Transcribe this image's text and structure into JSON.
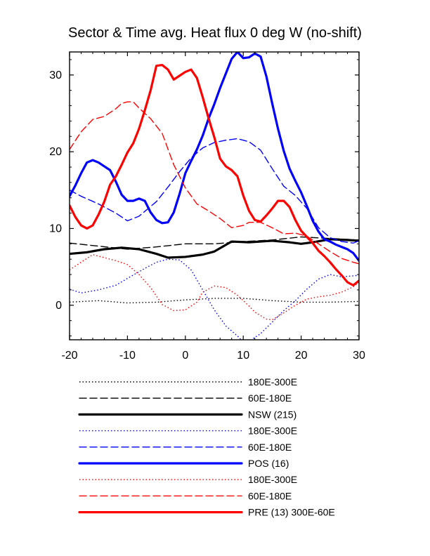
{
  "chart_data": {
    "type": "line",
    "title": "Sector & Time avg. Heat flux 0 deg W (no-shift)",
    "xlim": [
      -20,
      30
    ],
    "ylim": [
      -4.5,
      33
    ],
    "xticks": [
      "-20",
      "-10",
      "0",
      "10",
      "20",
      "30"
    ],
    "yticks": [
      "0",
      "10",
      "20",
      "30"
    ],
    "grid": false,
    "legend_position": "bottom",
    "series": [
      {
        "name": "180E-300E",
        "color": "#000000",
        "style": "dotted",
        "width": "thin",
        "points": [
          [
            -20,
            0.4
          ],
          [
            -15,
            0.6
          ],
          [
            -10,
            0.3
          ],
          [
            -5,
            0.4
          ],
          [
            0,
            0.7
          ],
          [
            5,
            0.9
          ],
          [
            10,
            0.9
          ],
          [
            15,
            0.6
          ],
          [
            20,
            0.4
          ],
          [
            25,
            0.4
          ],
          [
            30,
            0.5
          ]
        ]
      },
      {
        "name": "60E-180E",
        "color": "#000000",
        "style": "dashed",
        "width": "thin",
        "points": [
          [
            -20,
            8.1
          ],
          [
            -15,
            7.7
          ],
          [
            -10,
            7.3
          ],
          [
            -5,
            7.6
          ],
          [
            0,
            8.0
          ],
          [
            5,
            8.0
          ],
          [
            10,
            8.3
          ],
          [
            15,
            8.5
          ],
          [
            20,
            8.9
          ],
          [
            25,
            8.7
          ],
          [
            30,
            8.5
          ]
        ]
      },
      {
        "name": "NSW (215)",
        "color": "#000000",
        "style": "solid",
        "width": "thick",
        "points": [
          [
            -20,
            6.7
          ],
          [
            -17,
            6.9
          ],
          [
            -14,
            7.3
          ],
          [
            -11,
            7.5
          ],
          [
            -8,
            7.3
          ],
          [
            -5,
            6.7
          ],
          [
            -3,
            6.2
          ],
          [
            0,
            6.3
          ],
          [
            3,
            6.6
          ],
          [
            5,
            7.0
          ],
          [
            8,
            8.3
          ],
          [
            11,
            8.2
          ],
          [
            15,
            8.4
          ],
          [
            18,
            8.2
          ],
          [
            20,
            8.0
          ],
          [
            22,
            8.2
          ],
          [
            25,
            8.6
          ],
          [
            28,
            8.5
          ],
          [
            30,
            8.4
          ]
        ]
      },
      {
        "name": "180E-300E",
        "color": "#0000ff",
        "style": "dotted",
        "width": "thin",
        "points": [
          [
            -20,
            2.1
          ],
          [
            -18,
            1.6
          ],
          [
            -15,
            2.0
          ],
          [
            -12,
            2.6
          ],
          [
            -10,
            3.5
          ],
          [
            -7,
            4.8
          ],
          [
            -5,
            5.6
          ],
          [
            -3,
            6.0
          ],
          [
            -1,
            5.9
          ],
          [
            1,
            4.6
          ],
          [
            3,
            2.0
          ],
          [
            5,
            -0.6
          ],
          [
            7,
            -2.7
          ],
          [
            9,
            -4.0
          ],
          [
            10,
            -4.8
          ],
          [
            11,
            -4.7
          ],
          [
            13,
            -3.7
          ],
          [
            15,
            -2.2
          ],
          [
            17,
            -0.7
          ],
          [
            19,
            0.6
          ],
          [
            21,
            2.1
          ],
          [
            23,
            3.4
          ],
          [
            25,
            4.0
          ],
          [
            27,
            3.7
          ],
          [
            30,
            3.9
          ]
        ]
      },
      {
        "name": "60E-180E",
        "color": "#0000ff",
        "style": "dashed",
        "width": "thin",
        "points": [
          [
            -20,
            15.0
          ],
          [
            -18,
            14.2
          ],
          [
            -15,
            13.2
          ],
          [
            -12,
            12.0
          ],
          [
            -10,
            11.0
          ],
          [
            -8,
            11.6
          ],
          [
            -5,
            13.5
          ],
          [
            -3,
            15.4
          ],
          [
            -1,
            17.4
          ],
          [
            1,
            19.2
          ],
          [
            3,
            20.5
          ],
          [
            5,
            21.2
          ],
          [
            7,
            21.5
          ],
          [
            9,
            21.7
          ],
          [
            11,
            21.3
          ],
          [
            13,
            20.2
          ],
          [
            15,
            17.8
          ],
          [
            17,
            15.5
          ],
          [
            19,
            14.3
          ],
          [
            21,
            12.6
          ],
          [
            23,
            10.1
          ],
          [
            25,
            8.8
          ],
          [
            27,
            8.3
          ],
          [
            29,
            8.1
          ],
          [
            30,
            8.4
          ]
        ]
      },
      {
        "name": "POS (16)",
        "color": "#0000ff",
        "style": "solid",
        "width": "thick",
        "points": [
          [
            -20,
            14.2
          ],
          [
            -19,
            15.6
          ],
          [
            -18,
            17.2
          ],
          [
            -17,
            18.6
          ],
          [
            -16,
            18.9
          ],
          [
            -15,
            18.6
          ],
          [
            -14,
            18.1
          ],
          [
            -13,
            17.6
          ],
          [
            -12,
            16.1
          ],
          [
            -11,
            14.4
          ],
          [
            -10,
            13.6
          ],
          [
            -9,
            13.6
          ],
          [
            -8,
            13.9
          ],
          [
            -7,
            13.6
          ],
          [
            -6,
            12.1
          ],
          [
            -5,
            11.1
          ],
          [
            -4,
            10.7
          ],
          [
            -3,
            10.8
          ],
          [
            -2,
            12.1
          ],
          [
            -1,
            14.5
          ],
          [
            0,
            17.2
          ],
          [
            1,
            18.8
          ],
          [
            2,
            20.3
          ],
          [
            3,
            22.1
          ],
          [
            4,
            24.3
          ],
          [
            5,
            26.2
          ],
          [
            6,
            28.3
          ],
          [
            7,
            30.2
          ],
          [
            8,
            32.1
          ],
          [
            9,
            33.0
          ],
          [
            10,
            32.2
          ],
          [
            11,
            32.3
          ],
          [
            12,
            32.8
          ],
          [
            13,
            32.4
          ],
          [
            14,
            29.8
          ],
          [
            15,
            26.3
          ],
          [
            16,
            23.0
          ],
          [
            17,
            20.1
          ],
          [
            18,
            17.8
          ],
          [
            19,
            16.2
          ],
          [
            20,
            14.7
          ],
          [
            21,
            12.9
          ],
          [
            22,
            11.0
          ],
          [
            23,
            9.6
          ],
          [
            24,
            8.6
          ],
          [
            25,
            8.3
          ],
          [
            26,
            7.9
          ],
          [
            27,
            7.6
          ],
          [
            28,
            7.3
          ],
          [
            29,
            6.8
          ],
          [
            30,
            5.8
          ]
        ]
      },
      {
        "name": "180E-300E",
        "color": "#ff0000",
        "style": "dotted",
        "width": "thin",
        "points": [
          [
            -20,
            4.6
          ],
          [
            -18,
            5.6
          ],
          [
            -16,
            6.6
          ],
          [
            -14,
            6.2
          ],
          [
            -12,
            5.8
          ],
          [
            -10,
            5.3
          ],
          [
            -8,
            4.0
          ],
          [
            -6,
            2.3
          ],
          [
            -4,
            0.1
          ],
          [
            -2,
            -0.7
          ],
          [
            0,
            -0.6
          ],
          [
            2,
            0.4
          ],
          [
            3,
            1.7
          ],
          [
            5,
            2.5
          ],
          [
            7,
            2.3
          ],
          [
            9,
            1.3
          ],
          [
            11,
            -0.1
          ],
          [
            12,
            -0.9
          ],
          [
            14,
            -1.8
          ],
          [
            15,
            -1.9
          ],
          [
            17,
            -1.0
          ],
          [
            19,
            0.0
          ],
          [
            21,
            0.8
          ],
          [
            23,
            1.1
          ],
          [
            25,
            1.3
          ],
          [
            27,
            1.7
          ],
          [
            29,
            2.4
          ],
          [
            30,
            3.0
          ]
        ]
      },
      {
        "name": "60E-180E",
        "color": "#ff0000",
        "style": "dashed",
        "width": "thin",
        "points": [
          [
            -20,
            20.3
          ],
          [
            -18,
            22.6
          ],
          [
            -16,
            24.2
          ],
          [
            -14,
            24.6
          ],
          [
            -12,
            25.6
          ],
          [
            -11,
            26.3
          ],
          [
            -10,
            26.5
          ],
          [
            -9,
            26.5
          ],
          [
            -8,
            25.7
          ],
          [
            -6,
            24.3
          ],
          [
            -4,
            22.4
          ],
          [
            -2,
            18.3
          ],
          [
            0,
            15.3
          ],
          [
            2,
            13.2
          ],
          [
            4,
            12.3
          ],
          [
            6,
            11.3
          ],
          [
            8,
            10.1
          ],
          [
            10,
            10.4
          ],
          [
            11,
            10.8
          ],
          [
            13,
            10.8
          ],
          [
            15,
            10.1
          ],
          [
            17,
            9.3
          ],
          [
            19,
            9.4
          ],
          [
            21,
            9.0
          ],
          [
            23,
            8.0
          ],
          [
            25,
            7.0
          ],
          [
            27,
            6.1
          ],
          [
            29,
            5.6
          ],
          [
            30,
            5.4
          ]
        ]
      },
      {
        "name": "PRE (13) 300E-60E",
        "color": "#ff0000",
        "style": "solid",
        "width": "thick",
        "points": [
          [
            -20,
            13.0
          ],
          [
            -19,
            11.5
          ],
          [
            -18,
            10.4
          ],
          [
            -17,
            10.0
          ],
          [
            -16,
            10.4
          ],
          [
            -15,
            11.8
          ],
          [
            -14,
            13.5
          ],
          [
            -13,
            15.7
          ],
          [
            -12,
            16.8
          ],
          [
            -11,
            18.3
          ],
          [
            -10,
            19.9
          ],
          [
            -9,
            21.1
          ],
          [
            -8,
            23.0
          ],
          [
            -7,
            25.4
          ],
          [
            -6,
            28.0
          ],
          [
            -5,
            31.2
          ],
          [
            -4,
            31.3
          ],
          [
            -3,
            30.7
          ],
          [
            -2,
            29.4
          ],
          [
            -1,
            29.9
          ],
          [
            0,
            30.4
          ],
          [
            1,
            30.7
          ],
          [
            2,
            29.6
          ],
          [
            3,
            27.1
          ],
          [
            4,
            24.4
          ],
          [
            5,
            21.9
          ],
          [
            6,
            19.1
          ],
          [
            7,
            18.1
          ],
          [
            8,
            17.6
          ],
          [
            9,
            16.8
          ],
          [
            10,
            14.3
          ],
          [
            11,
            12.3
          ],
          [
            12,
            11.1
          ],
          [
            13,
            10.9
          ],
          [
            14,
            11.7
          ],
          [
            15,
            12.6
          ],
          [
            16,
            13.6
          ],
          [
            17,
            13.6
          ],
          [
            18,
            12.8
          ],
          [
            19,
            11.1
          ],
          [
            20,
            9.7
          ],
          [
            21,
            8.9
          ],
          [
            22,
            8.1
          ],
          [
            23,
            7.1
          ],
          [
            24,
            6.4
          ],
          [
            25,
            5.6
          ],
          [
            26,
            4.7
          ],
          [
            27,
            3.9
          ],
          [
            28,
            3.0
          ],
          [
            29,
            2.6
          ],
          [
            30,
            3.2
          ]
        ]
      }
    ]
  }
}
